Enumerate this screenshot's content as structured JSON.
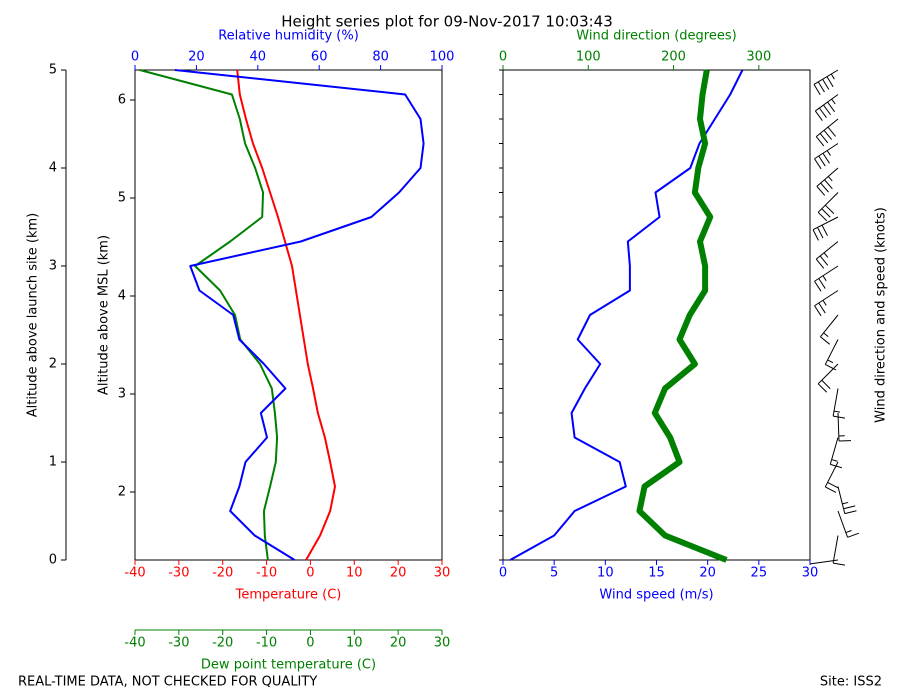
{
  "title": "Height series plot for 09-Nov-2017 10:03:43",
  "footer_left": "REAL-TIME DATA, NOT CHECKED FOR QUALITY",
  "footer_right": "Site: ISS2",
  "chart_data": [
    {
      "type": "profile",
      "y": [
        0,
        0.25,
        0.5,
        0.75,
        1,
        1.25,
        1.5,
        1.75,
        2,
        2.25,
        2.5,
        2.75,
        3,
        3.25,
        3.5,
        3.75,
        4,
        4.25,
        4.5,
        4.75,
        5
      ],
      "ylabel": "Altitude above launch site (km)",
      "y2label": "Altitude above MSL (km)",
      "ylim": [
        0,
        5
      ],
      "yticks": [
        0,
        1,
        2,
        3,
        4,
        5
      ],
      "y2lim": [
        1.306,
        6.306
      ],
      "y2ticks": [
        2,
        3,
        4,
        5,
        6
      ],
      "xlabel": "Temperature (C)",
      "xlim": [
        -40,
        30
      ],
      "xticks": [
        -40,
        -30,
        -20,
        -10,
        0,
        10,
        20,
        30
      ],
      "xcolor": "#ff0000",
      "x2label": "Relative humidity (%)",
      "x2lim": [
        0,
        100
      ],
      "x2ticks": [
        0,
        20,
        40,
        60,
        80,
        100
      ],
      "x2color": "#0000ff",
      "x3label": "Dew point temperature (C)",
      "x3lim": [
        -40,
        30
      ],
      "x3ticks": [
        -40,
        -30,
        -20,
        -10,
        0,
        10,
        20,
        30
      ],
      "x3color": "#008000",
      "series": [
        {
          "name": "Temperature",
          "axis": "x",
          "color": "#ff0000",
          "values": [
            -1,
            2.2,
            4.5,
            5.6,
            4.5,
            3.3,
            1.7,
            0.6,
            -0.6,
            -1.5,
            -2.4,
            -3.3,
            -4.2,
            -5.8,
            -7.4,
            -9.2,
            -11,
            -13.1,
            -14.7,
            -16.1,
            -16.7
          ]
        },
        {
          "name": "Dew point",
          "axis": "x3",
          "color": "#008000",
          "values": [
            -9.7,
            -10.4,
            -10.6,
            -9.2,
            -7.9,
            -7.6,
            -8.1,
            -8.8,
            -11.5,
            -16,
            -17.2,
            -20.6,
            -26.3,
            -18.3,
            -11,
            -10.8,
            -12.6,
            -14.9,
            -16.1,
            -17.9,
            -38.9
          ]
        },
        {
          "name": "Relative humidity",
          "axis": "x2",
          "color": "#0000ff",
          "values": [
            52,
            39,
            31,
            34,
            36,
            43,
            41,
            49,
            42,
            34,
            32,
            21,
            18,
            54,
            77,
            86,
            93,
            94,
            93,
            88,
            13
          ]
        }
      ]
    },
    {
      "type": "wind",
      "y": [
        0,
        0.25,
        0.5,
        0.75,
        1,
        1.25,
        1.5,
        1.75,
        2,
        2.25,
        2.5,
        2.75,
        3,
        3.25,
        3.5,
        3.75,
        4,
        4.25,
        4.5,
        4.75,
        5
      ],
      "ylim": [
        0,
        5
      ],
      "xlabel": "Wind speed (m/s)",
      "xlim": [
        0,
        30
      ],
      "xticks": [
        0,
        5,
        10,
        15,
        20,
        25,
        30
      ],
      "xcolor": "#0000ff",
      "x2label": "Wind direction (degrees)",
      "x2lim": [
        0,
        360
      ],
      "x2ticks": [
        0,
        100,
        200,
        300
      ],
      "x2color": "#008000",
      "y2label": "Wind direction and speed (knots)",
      "series": [
        {
          "name": "Wind speed",
          "axis": "x",
          "color": "#0000ff",
          "values": [
            0.7,
            5,
            7,
            12,
            11.4,
            7,
            6.7,
            8,
            9.5,
            7.3,
            8.5,
            12.4,
            12.4,
            12.2,
            15.3,
            14.9,
            18.3,
            19.2,
            20.7,
            22.2,
            23.4
          ]
        },
        {
          "name": "Wind direction",
          "axis": "x2",
          "color": "#008000",
          "values": [
            262,
            190,
            160,
            166,
            207,
            196,
            178,
            190,
            225,
            207,
            219,
            237,
            237,
            231,
            243,
            225,
            229,
            237,
            231,
            234,
            239
          ]
        }
      ]
    }
  ]
}
